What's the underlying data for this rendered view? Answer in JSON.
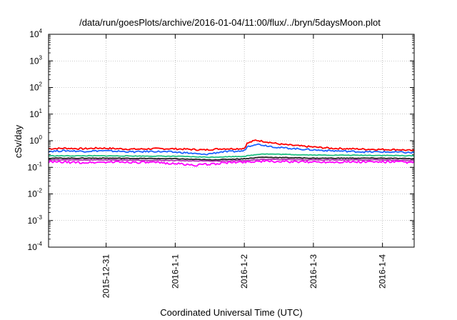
{
  "chart_data": {
    "type": "line",
    "title": "/data/run/goesPlots/archive/2016-01-04/11:00/flux/../bryn/5daysMoon.plot",
    "xlabel": "Coordinated Universal Time (UTC)",
    "ylabel": "cSv/day",
    "y_scale": "log",
    "ylim": [
      0.0001,
      10000
    ],
    "x_range": [
      "2015-12-30T04:00",
      "2016-01-04T11:00"
    ],
    "y_ticks": [
      {
        "base": "10",
        "exp": "-4",
        "value": 0.0001
      },
      {
        "base": "10",
        "exp": "-3",
        "value": 0.001
      },
      {
        "base": "10",
        "exp": "-2",
        "value": 0.01
      },
      {
        "base": "10",
        "exp": "-1",
        "value": 0.1
      },
      {
        "base": "10",
        "exp": "0",
        "value": 1
      },
      {
        "base": "10",
        "exp": "1",
        "value": 10
      },
      {
        "base": "10",
        "exp": "2",
        "value": 100
      },
      {
        "base": "10",
        "exp": "3",
        "value": 1000
      },
      {
        "base": "10",
        "exp": "4",
        "value": 10000
      }
    ],
    "x_ticks": [
      {
        "label": "2015-12-31",
        "value": "2015-12-31T00:00"
      },
      {
        "label": "2016-1-1",
        "value": "2016-01-01T00:00"
      },
      {
        "label": "2016-1-2",
        "value": "2016-01-02T00:00"
      },
      {
        "label": "2016-1-3",
        "value": "2016-01-03T00:00"
      },
      {
        "label": "2016-1-4",
        "value": "2016-01-04T00:00"
      }
    ],
    "grid": true,
    "legend": "none",
    "series": [
      {
        "color": "#ff0000",
        "x": [
          "2015-12-30T04:00",
          "2015-12-30T10:00",
          "2015-12-30T16:00",
          "2015-12-30T22:00",
          "2015-12-31T04:00",
          "2015-12-31T10:00",
          "2015-12-31T16:00",
          "2015-12-31T22:00",
          "2016-01-01T04:00",
          "2016-01-01T10:00",
          "2016-01-01T16:00",
          "2016-01-01T22:00",
          "2016-01-02T00:00",
          "2016-01-02T01:00",
          "2016-01-02T04:00",
          "2016-01-02T08:00",
          "2016-01-02T12:00",
          "2016-01-02T18:00",
          "2016-01-03T00:00",
          "2016-01-03T06:00",
          "2016-01-03T12:00",
          "2016-01-03T18:00",
          "2016-01-04T00:00",
          "2016-01-04T06:00",
          "2016-01-04T11:00"
        ],
        "y": [
          0.5,
          0.52,
          0.5,
          0.53,
          0.5,
          0.48,
          0.5,
          0.5,
          0.48,
          0.45,
          0.5,
          0.5,
          0.52,
          0.8,
          1.05,
          0.9,
          0.75,
          0.65,
          0.58,
          0.52,
          0.5,
          0.48,
          0.47,
          0.46,
          0.42
        ]
      },
      {
        "color": "#1e64ff",
        "x": [
          "2015-12-30T04:00",
          "2015-12-30T10:00",
          "2015-12-30T16:00",
          "2015-12-30T22:00",
          "2015-12-31T04:00",
          "2015-12-31T10:00",
          "2015-12-31T16:00",
          "2015-12-31T22:00",
          "2016-01-01T04:00",
          "2016-01-01T10:00",
          "2016-01-01T16:00",
          "2016-01-01T22:00",
          "2016-01-02T00:00",
          "2016-01-02T01:00",
          "2016-01-02T04:00",
          "2016-01-02T08:00",
          "2016-01-02T12:00",
          "2016-01-02T18:00",
          "2016-01-03T00:00",
          "2016-01-03T06:00",
          "2016-01-03T12:00",
          "2016-01-03T18:00",
          "2016-01-04T00:00",
          "2016-01-04T06:00",
          "2016-01-04T11:00"
        ],
        "y": [
          0.4,
          0.42,
          0.4,
          0.42,
          0.4,
          0.38,
          0.4,
          0.38,
          0.35,
          0.3,
          0.38,
          0.4,
          0.42,
          0.6,
          0.75,
          0.65,
          0.55,
          0.5,
          0.45,
          0.42,
          0.4,
          0.38,
          0.38,
          0.37,
          0.35
        ]
      },
      {
        "color": "#20c080",
        "x": [
          "2015-12-30T04:00",
          "2015-12-31T00:00",
          "2016-01-01T00:00",
          "2016-01-01T12:00",
          "2016-01-02T00:00",
          "2016-01-02T06:00",
          "2016-01-03T00:00",
          "2016-01-04T00:00",
          "2016-01-04T11:00"
        ],
        "y": [
          0.27,
          0.27,
          0.26,
          0.24,
          0.26,
          0.32,
          0.29,
          0.28,
          0.27
        ]
      },
      {
        "color": "#202020",
        "x": [
          "2015-12-30T04:00",
          "2015-12-31T00:00",
          "2016-01-01T00:00",
          "2016-01-01T12:00",
          "2016-01-02T00:00",
          "2016-01-02T06:00",
          "2016-01-03T00:00",
          "2016-01-04T00:00",
          "2016-01-04T11:00"
        ],
        "y": [
          0.22,
          0.22,
          0.21,
          0.19,
          0.21,
          0.24,
          0.22,
          0.22,
          0.21
        ]
      },
      {
        "color": "#b030b0",
        "x": [
          "2015-12-30T04:00",
          "2015-12-31T00:00",
          "2016-01-01T00:00",
          "2016-01-01T12:00",
          "2016-01-02T00:00",
          "2016-01-02T06:00",
          "2016-01-03T00:00",
          "2016-01-04T00:00",
          "2016-01-04T11:00"
        ],
        "y": [
          0.19,
          0.19,
          0.18,
          0.17,
          0.18,
          0.2,
          0.19,
          0.19,
          0.18
        ]
      },
      {
        "color": "#ff00ff",
        "x": [
          "2015-12-30T04:00",
          "2015-12-30T16:00",
          "2015-12-31T04:00",
          "2015-12-31T16:00",
          "2016-01-01T00:00",
          "2016-01-01T06:00",
          "2016-01-01T12:00",
          "2016-01-01T18:00",
          "2016-01-02T00:00",
          "2016-01-02T06:00",
          "2016-01-02T18:00",
          "2016-01-03T06:00",
          "2016-01-03T18:00",
          "2016-01-04T06:00",
          "2016-01-04T11:00"
        ],
        "y": [
          0.16,
          0.15,
          0.16,
          0.15,
          0.14,
          0.12,
          0.13,
          0.15,
          0.16,
          0.17,
          0.16,
          0.16,
          0.16,
          0.16,
          0.15
        ]
      }
    ]
  }
}
